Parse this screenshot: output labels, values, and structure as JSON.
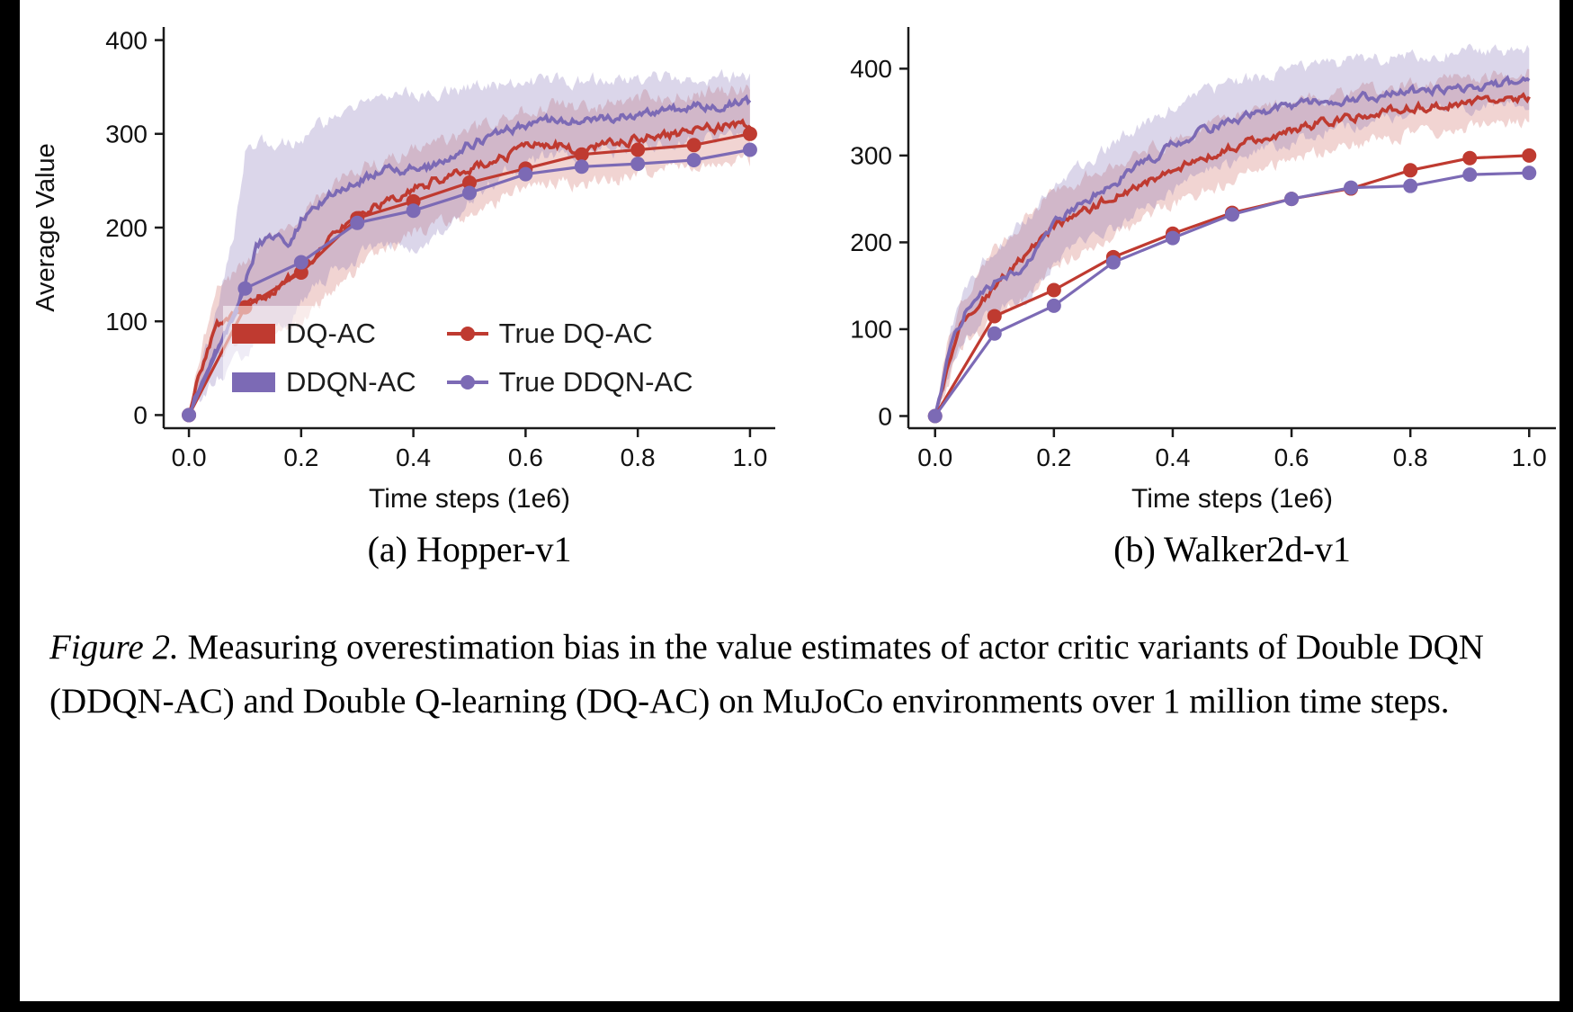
{
  "subcaptions": {
    "a": "(a) Hopper-v1",
    "b": "(b) Walker2d-v1"
  },
  "caption": {
    "label": "Figure 2.",
    "body": " Measuring overestimation bias in the value estimates of actor critic variants of Double DQN (DDQN-AC) and Double Q-learning (DQ-AC) on MuJoCo environments over 1 million time steps."
  },
  "colors": {
    "red": "#bf3a30",
    "purple": "#7c6ab5",
    "axis": "#1a1a1a"
  },
  "chart_data": [
    {
      "type": "line",
      "title": "(a) Hopper-v1",
      "xlabel": "Time steps (1e6)",
      "ylabel": "Average Value",
      "xticks": [
        0.0,
        0.2,
        0.4,
        0.6,
        0.8,
        1.0
      ],
      "yticks": [
        0,
        100,
        200,
        300,
        400
      ],
      "xlim": [
        -0.045,
        1.045
      ],
      "ylim": [
        -14,
        414
      ],
      "grid": false,
      "legend_position": "lower-left",
      "series": [
        {
          "name": "DQ-AC",
          "style": "band",
          "color": "#bf3a30",
          "band_opacity": 0.22,
          "x": [
            0,
            0.025,
            0.05,
            0.1,
            0.15,
            0.2,
            0.25,
            0.3,
            0.35,
            0.4,
            0.45,
            0.5,
            0.55,
            0.6,
            0.65,
            0.7,
            0.75,
            0.8,
            0.85,
            0.9,
            0.95,
            1.0
          ],
          "y": [
            0,
            55,
            95,
            120,
            132,
            155,
            185,
            212,
            228,
            243,
            252,
            262,
            272,
            287,
            290,
            281,
            290,
            295,
            299,
            304,
            308,
            310
          ],
          "lo": [
            0,
            30,
            60,
            85,
            88,
            95,
            130,
            155,
            175,
            195,
            205,
            215,
            230,
            245,
            250,
            245,
            252,
            258,
            262,
            266,
            268,
            270
          ],
          "hi": [
            0,
            80,
            130,
            165,
            190,
            215,
            240,
            262,
            272,
            282,
            292,
            302,
            312,
            325,
            330,
            325,
            332,
            338,
            340,
            344,
            346,
            348
          ]
        },
        {
          "name": "DDQN-AC",
          "style": "band",
          "color": "#7c6ab5",
          "band_opacity": 0.28,
          "x": [
            0,
            0.05,
            0.08,
            0.1,
            0.12,
            0.15,
            0.18,
            0.2,
            0.25,
            0.3,
            0.35,
            0.4,
            0.45,
            0.5,
            0.55,
            0.6,
            0.65,
            0.7,
            0.75,
            0.8,
            0.85,
            0.9,
            0.95,
            1.0
          ],
          "y": [
            0,
            70,
            105,
            140,
            180,
            190,
            186,
            208,
            235,
            250,
            260,
            262,
            268,
            288,
            300,
            310,
            315,
            318,
            318,
            322,
            325,
            330,
            330,
            333
          ],
          "lo": [
            0,
            40,
            55,
            60,
            80,
            90,
            100,
            120,
            150,
            168,
            178,
            180,
            195,
            228,
            252,
            268,
            275,
            280,
            280,
            285,
            290,
            296,
            298,
            302
          ],
          "hi": [
            0,
            110,
            190,
            280,
            288,
            292,
            288,
            295,
            315,
            328,
            338,
            344,
            346,
            350,
            352,
            355,
            356,
            357,
            357,
            358,
            359,
            360,
            360,
            361
          ]
        },
        {
          "name": "True DQ-AC",
          "style": "marker",
          "color": "#bf3a30",
          "x": [
            0,
            0.1,
            0.2,
            0.3,
            0.4,
            0.5,
            0.6,
            0.7,
            0.8,
            0.9,
            1.0
          ],
          "y": [
            0,
            115,
            152,
            210,
            228,
            248,
            263,
            278,
            283,
            288,
            300
          ]
        },
        {
          "name": "True DDQN-AC",
          "style": "marker",
          "color": "#7c6ab5",
          "x": [
            0,
            0.1,
            0.2,
            0.3,
            0.4,
            0.5,
            0.6,
            0.7,
            0.8,
            0.9,
            1.0
          ],
          "y": [
            0,
            135,
            163,
            205,
            218,
            237,
            257,
            265,
            268,
            272,
            283
          ]
        }
      ],
      "legend": [
        {
          "label": "DQ-AC",
          "swatch": "patch",
          "color": "#bf3a30"
        },
        {
          "label": "DDQN-AC",
          "swatch": "patch",
          "color": "#7c6ab5"
        },
        {
          "label": "True DQ-AC",
          "swatch": "marker",
          "color": "#bf3a30"
        },
        {
          "label": "True DDQN-AC",
          "swatch": "marker",
          "color": "#7c6ab5"
        }
      ]
    },
    {
      "type": "line",
      "title": "(b) Walker2d-v1",
      "xlabel": "Time steps (1e6)",
      "ylabel": "",
      "xticks": [
        0.0,
        0.2,
        0.4,
        0.6,
        0.8,
        1.0
      ],
      "yticks": [
        0,
        100,
        200,
        300,
        400
      ],
      "xlim": [
        -0.045,
        1.045
      ],
      "ylim": [
        -14,
        448
      ],
      "grid": false,
      "legend_position": "none",
      "series": [
        {
          "name": "DQ-AC",
          "style": "band",
          "color": "#bf3a30",
          "band_opacity": 0.22,
          "x": [
            0,
            0.025,
            0.05,
            0.1,
            0.15,
            0.2,
            0.25,
            0.3,
            0.35,
            0.4,
            0.45,
            0.5,
            0.55,
            0.6,
            0.65,
            0.7,
            0.75,
            0.8,
            0.85,
            0.9,
            0.95,
            1.0
          ],
          "y": [
            0,
            70,
            112,
            148,
            185,
            218,
            235,
            252,
            268,
            283,
            297,
            310,
            320,
            330,
            338,
            344,
            350,
            355,
            358,
            362,
            366,
            368
          ],
          "lo": [
            0,
            45,
            85,
            110,
            140,
            170,
            190,
            208,
            225,
            242,
            258,
            272,
            284,
            296,
            305,
            312,
            318,
            324,
            328,
            333,
            337,
            340
          ],
          "hi": [
            0,
            95,
            140,
            190,
            228,
            258,
            275,
            290,
            305,
            318,
            330,
            342,
            352,
            360,
            366,
            372,
            377,
            382,
            385,
            390,
            393,
            396
          ]
        },
        {
          "name": "DDQN-AC",
          "style": "band",
          "color": "#7c6ab5",
          "band_opacity": 0.28,
          "x": [
            0,
            0.025,
            0.05,
            0.1,
            0.15,
            0.2,
            0.25,
            0.3,
            0.35,
            0.4,
            0.45,
            0.5,
            0.55,
            0.6,
            0.65,
            0.7,
            0.75,
            0.8,
            0.85,
            0.9,
            0.95,
            1.0
          ],
          "y": [
            0,
            75,
            120,
            152,
            172,
            225,
            248,
            268,
            290,
            312,
            328,
            340,
            350,
            356,
            362,
            366,
            370,
            373,
            376,
            379,
            382,
            385
          ],
          "lo": [
            0,
            50,
            95,
            120,
            135,
            180,
            200,
            215,
            235,
            258,
            278,
            292,
            306,
            318,
            328,
            335,
            341,
            347,
            351,
            355,
            358,
            361
          ],
          "hi": [
            0,
            100,
            150,
            195,
            225,
            268,
            290,
            312,
            335,
            355,
            370,
            382,
            392,
            398,
            404,
            408,
            412,
            415,
            417,
            420,
            421,
            422
          ]
        },
        {
          "name": "True DQ-AC",
          "style": "marker",
          "color": "#bf3a30",
          "x": [
            0,
            0.1,
            0.2,
            0.3,
            0.4,
            0.5,
            0.6,
            0.7,
            0.8,
            0.9,
            1.0
          ],
          "y": [
            0,
            115,
            145,
            183,
            210,
            234,
            250,
            262,
            283,
            297,
            300
          ]
        },
        {
          "name": "True DDQN-AC",
          "style": "marker",
          "color": "#7c6ab5",
          "x": [
            0,
            0.1,
            0.2,
            0.3,
            0.4,
            0.5,
            0.6,
            0.7,
            0.8,
            0.9,
            1.0
          ],
          "y": [
            0,
            95,
            127,
            177,
            205,
            232,
            250,
            263,
            265,
            278,
            280
          ]
        }
      ],
      "legend": []
    }
  ]
}
